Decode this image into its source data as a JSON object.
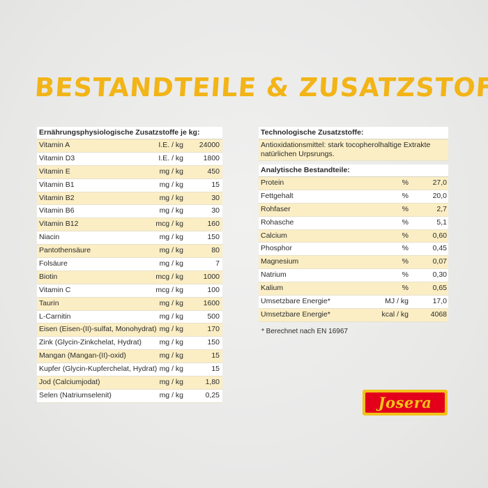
{
  "title": "BESTANDTEILE & ZUSATZSTOFFE",
  "nutrition": {
    "header": "Ernährungsphysiologische Zusatzstoffe je kg:",
    "rows": [
      {
        "name": "Vitamin A",
        "unit": "I.E. / kg",
        "value": "24000"
      },
      {
        "name": "Vitamin D3",
        "unit": "I.E. / kg",
        "value": "1800"
      },
      {
        "name": "Vitamin E",
        "unit": "mg / kg",
        "value": "450"
      },
      {
        "name": "Vitamin B1",
        "unit": "mg / kg",
        "value": "15"
      },
      {
        "name": "Vitamin B2",
        "unit": "mg / kg",
        "value": "30"
      },
      {
        "name": "Vitamin B6",
        "unit": "mg / kg",
        "value": "30"
      },
      {
        "name": "Vitamin B12",
        "unit": "mcg / kg",
        "value": "160"
      },
      {
        "name": "Niacin",
        "unit": "mg / kg",
        "value": "150"
      },
      {
        "name": "Pantothensäure",
        "unit": "mg / kg",
        "value": "80"
      },
      {
        "name": "Folsäure",
        "unit": "mg / kg",
        "value": "7"
      },
      {
        "name": "Biotin",
        "unit": "mcg / kg",
        "value": "1000"
      },
      {
        "name": "Vitamin C",
        "unit": "mcg / kg",
        "value": "100"
      },
      {
        "name": "Taurin",
        "unit": "mg / kg",
        "value": "1600"
      },
      {
        "name": "L-Carnitin",
        "unit": "mg / kg",
        "value": "500"
      },
      {
        "name": "Eisen (Eisen-(II)-sulfat, Monohydrat)",
        "unit": "mg / kg",
        "value": "170"
      },
      {
        "name": "Zink (Glycin-Zinkchelat, Hydrat)",
        "unit": "mg / kg",
        "value": "150"
      },
      {
        "name": "Mangan (Mangan-(II)-oxid)",
        "unit": "mg / kg",
        "value": "15"
      },
      {
        "name": "Kupfer (Glycin-Kupferchelat, Hydrat)",
        "unit": "mg / kg",
        "value": "15"
      },
      {
        "name": "Jod (Calciumjodat)",
        "unit": "mg / kg",
        "value": "1,80"
      },
      {
        "name": "Selen (Natriumselenit)",
        "unit": "mg / kg",
        "value": "0,25"
      }
    ]
  },
  "technological": {
    "header": "Technologische Zusatzstoffe:",
    "text": "Antioxidationsmittel: stark tocopherolhaltige Extrakte natürlichen Urpsrungs."
  },
  "analytic": {
    "header": "Analytische Bestandteile:",
    "rows": [
      {
        "name": "Protein",
        "unit": "%",
        "value": "27,0"
      },
      {
        "name": "Fettgehalt",
        "unit": "%",
        "value": "20,0"
      },
      {
        "name": "Rohfaser",
        "unit": "%",
        "value": "2,7"
      },
      {
        "name": "Rohasche",
        "unit": "%",
        "value": "5,1"
      },
      {
        "name": "Calcium",
        "unit": "%",
        "value": "0,60"
      },
      {
        "name": "Phosphor",
        "unit": "%",
        "value": "0,45"
      },
      {
        "name": "Magnesium",
        "unit": "%",
        "value": "0,07"
      },
      {
        "name": "Natrium",
        "unit": "%",
        "value": "0,30"
      },
      {
        "name": "Kalium",
        "unit": "%",
        "value": "0,65"
      },
      {
        "name": "Umsetzbare Energie*",
        "unit": "MJ / kg",
        "value": "17,0"
      },
      {
        "name": "Umsetzbare Energie*",
        "unit": "kcal / kg",
        "value": "4068"
      }
    ]
  },
  "footnote": "* Berechnet nach EN 16967",
  "logo": {
    "text": "Josera"
  },
  "colors": {
    "accent": "#f2b417",
    "row_alt": "#fbeec4",
    "logo_red": "#e3001b",
    "logo_yellow": "#f2c21a"
  }
}
